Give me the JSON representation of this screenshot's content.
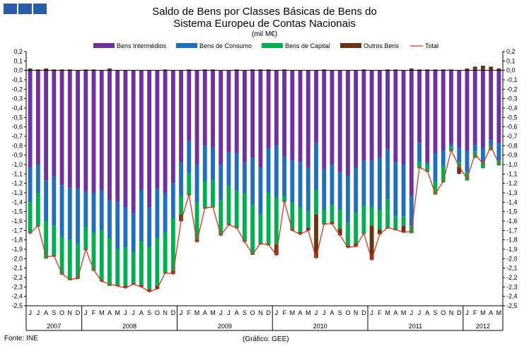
{
  "logo": {
    "name": "gee-logo-squares",
    "color": "#2a5caa"
  },
  "chart_data": {
    "type": "bar",
    "title": "Saldo de Bens por Classes Básicas de Bens do",
    "subtitle": "Sistema Europeu de Contas Nacionais",
    "unit": "(mil M€)",
    "ylim": [
      -2.5,
      0.2
    ],
    "y_tick_step": 0.1,
    "y_ticks": [
      "0,2",
      "0,1",
      "0,0",
      "-0,1",
      "-0,2",
      "-0,3",
      "-0,4",
      "-0,5",
      "-0,6",
      "-0,7",
      "-0,8",
      "-0,9",
      "-1,0",
      "-1,1",
      "-1,2",
      "-1,3",
      "-1,4",
      "-1,5",
      "-1,6",
      "-1,7",
      "-1,8",
      "-1,9",
      "-2,0",
      "-2,1",
      "-2,2",
      "-2,3",
      "-2,4",
      "-2,5"
    ],
    "months": [
      "J",
      "J",
      "A",
      "S",
      "O",
      "N",
      "D",
      "J",
      "F",
      "M",
      "A",
      "M",
      "J",
      "J",
      "A",
      "S",
      "O",
      "N",
      "D",
      "J",
      "F",
      "M",
      "A",
      "M",
      "J",
      "J",
      "A",
      "S",
      "O",
      "N",
      "D",
      "J",
      "F",
      "M",
      "A",
      "M",
      "J",
      "J",
      "A",
      "S",
      "O",
      "N",
      "D",
      "J",
      "F",
      "M",
      "A",
      "M",
      "J",
      "J",
      "A",
      "S",
      "O",
      "N",
      "D",
      "J",
      "F",
      "M",
      "A",
      "M"
    ],
    "years": [
      {
        "label": "2007",
        "count": 7
      },
      {
        "label": "2008",
        "count": 12
      },
      {
        "label": "2009",
        "count": 12
      },
      {
        "label": "2010",
        "count": 12
      },
      {
        "label": "2011",
        "count": 12
      },
      {
        "label": "2012",
        "count": 5
      }
    ],
    "legend_position": "top",
    "grid": false,
    "series": [
      {
        "name": "Bens Intermédios",
        "color": "#7030a0",
        "values": [
          -1.03,
          -1.0,
          -1.17,
          -1.12,
          -1.22,
          -1.25,
          -1.26,
          -1.29,
          -1.3,
          -1.27,
          -1.38,
          -1.4,
          -1.45,
          -1.52,
          -1.27,
          -1.45,
          -1.26,
          -1.3,
          -1.2,
          -0.98,
          -0.75,
          -1.0,
          -0.8,
          -0.82,
          -1.0,
          -0.87,
          -0.88,
          -0.98,
          -0.93,
          -1.03,
          -0.83,
          -0.8,
          -0.92,
          -0.96,
          -0.98,
          -1.03,
          -0.77,
          -1.05,
          -1.0,
          -1.08,
          -1.12,
          -1.03,
          -0.96,
          -0.96,
          -0.93,
          -0.84,
          -0.98,
          -1.0,
          -1.33,
          -0.77,
          -0.98,
          -0.88,
          -0.85,
          -0.78,
          -0.82,
          -0.85,
          -0.79,
          -0.82,
          -0.74,
          -0.78
        ]
      },
      {
        "name": "Bens de Consumo",
        "color": "#1f6fc0",
        "values": [
          -0.37,
          -0.3,
          -0.43,
          -0.53,
          -0.55,
          -0.55,
          -0.58,
          -0.37,
          -0.42,
          -0.43,
          -0.4,
          -0.5,
          -0.43,
          -0.41,
          -0.55,
          -0.42,
          -0.52,
          -0.42,
          -0.37,
          -0.35,
          -0.35,
          -0.4,
          -0.38,
          -0.35,
          -0.38,
          -0.36,
          -0.4,
          -0.33,
          -0.5,
          -0.5,
          -0.47,
          -0.55,
          -0.41,
          -0.45,
          -0.47,
          -0.47,
          -0.5,
          -0.43,
          -0.43,
          -0.4,
          -0.5,
          -0.48,
          -0.48,
          -0.49,
          -0.55,
          -0.53,
          -0.57,
          -0.55,
          -0.32,
          -0.2,
          -0.02,
          -0.3,
          -0.17,
          -0.03,
          -0.15,
          -0.23,
          -0.07,
          -0.16,
          -0.07,
          -0.18
        ]
      },
      {
        "name": "Bens de Capital",
        "color": "#00b050",
        "values": [
          -0.33,
          -0.36,
          -0.4,
          -0.33,
          -0.4,
          -0.43,
          -0.36,
          -0.25,
          -0.41,
          -0.53,
          -0.51,
          -0.38,
          -0.41,
          -0.33,
          -0.46,
          -0.46,
          -0.51,
          -0.44,
          -0.56,
          -0.2,
          -0.23,
          -0.4,
          -0.29,
          -0.29,
          -0.36,
          -0.4,
          -0.4,
          -0.5,
          -0.53,
          -0.32,
          -0.56,
          -0.5,
          -0.07,
          -0.28,
          -0.27,
          -0.17,
          -0.26,
          -0.16,
          -0.18,
          -0.2,
          -0.24,
          -0.33,
          -0.3,
          -0.2,
          -0.21,
          -0.31,
          -0.15,
          -0.1,
          -0.08,
          -0.07,
          -0.08,
          -0.14,
          -0.17,
          -0.05,
          -0.06,
          -0.09,
          -0.07,
          -0.06,
          -0.04,
          -0.05
        ]
      },
      {
        "name": "Outros Bens",
        "color": "#6b3410",
        "values": [
          0.02,
          0.01,
          0.02,
          0.01,
          0.01,
          0.01,
          -0.01,
          0.01,
          0.01,
          -0.01,
          0.02,
          -0.01,
          -0.02,
          -0.01,
          -0.02,
          -0.02,
          -0.03,
          0.01,
          -0.03,
          -0.07,
          0.01,
          -0.02,
          0.01,
          0.01,
          -0.01,
          -0.01,
          0.01,
          -0.01,
          0.01,
          0.01,
          0.01,
          -0.11,
          0.01,
          -0.01,
          -0.02,
          -0.03,
          -0.46,
          0.01,
          -0.02,
          -0.07,
          -0.02,
          -0.03,
          0.01,
          -0.36,
          -0.05,
          0.01,
          0.01,
          -0.07,
          0.02,
          0.01,
          0.01,
          0.01,
          0.01,
          0.01,
          -0.07,
          0.02,
          0.04,
          0.05,
          0.04,
          0.02
        ]
      }
    ],
    "total": {
      "name": "Total",
      "color": "#e03020",
      "values": [
        -1.73,
        -1.65,
        -1.98,
        -1.97,
        -2.16,
        -2.22,
        -2.21,
        -1.9,
        -2.12,
        -2.24,
        -2.27,
        -2.29,
        -2.31,
        -2.27,
        -2.3,
        -2.35,
        -2.32,
        -2.15,
        -2.16,
        -1.6,
        -1.32,
        -1.82,
        -1.46,
        -1.45,
        -1.75,
        -1.64,
        -1.67,
        -1.82,
        -1.95,
        -1.84,
        -1.85,
        -1.96,
        -1.39,
        -1.7,
        -1.74,
        -1.7,
        -1.99,
        -1.63,
        -1.63,
        -1.75,
        -1.88,
        -1.87,
        -1.73,
        -2.01,
        -1.74,
        -1.67,
        -1.69,
        -1.72,
        -1.71,
        -1.03,
        -1.07,
        -1.31,
        -1.18,
        -0.85,
        -1.02,
        -1.15,
        -0.89,
        -0.99,
        -0.81,
        -0.99
      ]
    },
    "xlabel": "",
    "ylabel": ""
  },
  "footer": {
    "source": "Fonte: INE",
    "credit": "(Gráfico: GEE)"
  }
}
